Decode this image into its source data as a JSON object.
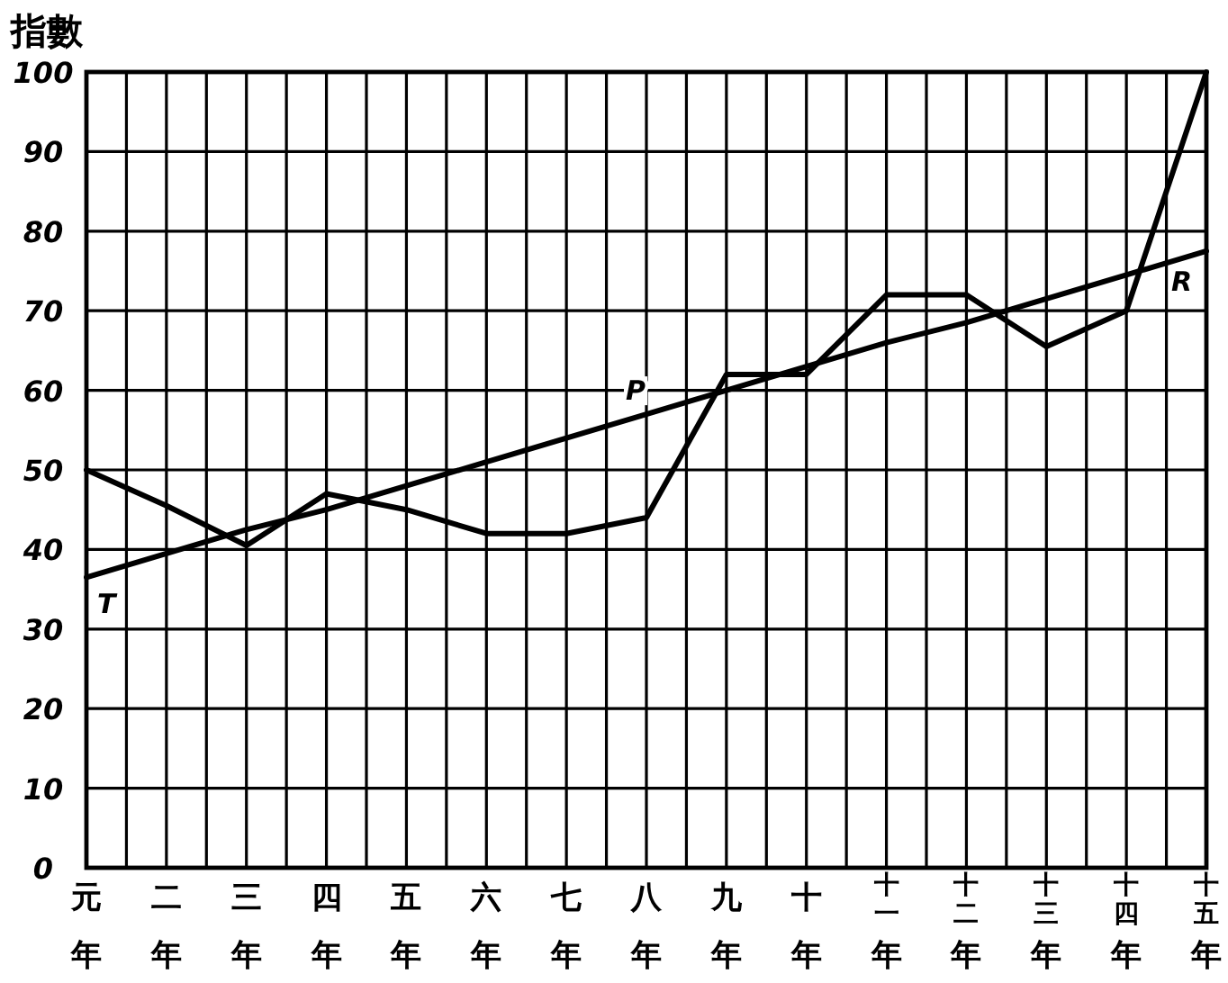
{
  "chart_data": {
    "type": "line",
    "ylabel": "指數",
    "categories": [
      "元年",
      "二年",
      "三年",
      "四年",
      "五年",
      "六年",
      "七年",
      "八年",
      "九年",
      "十年",
      "十一年",
      "十二年",
      "十三年",
      "十四年",
      "十五年"
    ],
    "series": [
      {
        "color": "#000000",
        "values": [
          50,
          45.5,
          40.5,
          47,
          45,
          42,
          42,
          44,
          62,
          62,
          72,
          72,
          65.5,
          70,
          100
        ]
      },
      {
        "color": "#000000",
        "values": [
          36.5,
          39.5,
          42.5,
          45,
          48,
          51,
          54,
          57,
          60,
          63,
          66,
          68.5,
          71.5,
          74.5,
          77.5
        ]
      }
    ],
    "ylim": [
      0,
      100
    ],
    "yticks": [
      0,
      10,
      20,
      30,
      40,
      50,
      60,
      70,
      80,
      90,
      100
    ],
    "grid": true,
    "line_style": "solid",
    "annotations": [
      {
        "text": "T",
        "x": "元年",
        "y": 36.5
      },
      {
        "text": "P",
        "x": "八年",
        "y": 57
      },
      {
        "text": "R",
        "x": "十五年",
        "y": 77.5
      }
    ]
  }
}
